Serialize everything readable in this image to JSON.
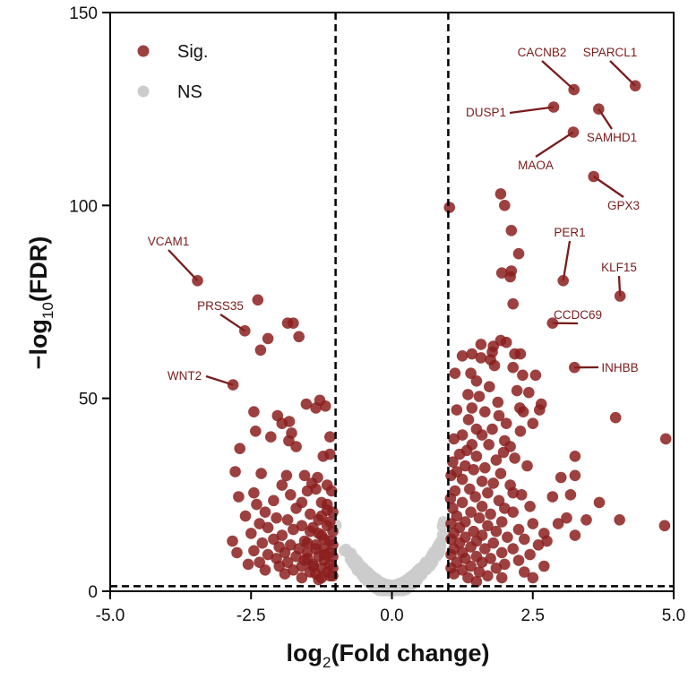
{
  "chart_data": {
    "type": "scatter",
    "title": "",
    "xlabel": {
      "prefix": "log",
      "sub": "2",
      "main": "(Fold change)"
    },
    "ylabel": {
      "prefix": "−log",
      "sub": "10",
      "main": "(FDR)"
    },
    "xlim": [
      -5,
      5
    ],
    "ylim": [
      0,
      150
    ],
    "xticks": [
      "-5.0",
      "-2.5",
      "0.0",
      "2.5",
      "5.0"
    ],
    "yticks": [
      "0",
      "50",
      "100",
      "150"
    ],
    "grid": false,
    "legend_position": "top-left",
    "thresholds": {
      "log2fc": [
        -1,
        1
      ],
      "neg_log10_fdr": 1.3
    },
    "colors": {
      "sig": "#8b1f1f",
      "ns": "#cccccc",
      "label": "#7a1c1c"
    },
    "series": [
      {
        "name": "Sig.",
        "color": "#8b1f1f"
      },
      {
        "name": "NS",
        "color": "#cccccc"
      }
    ],
    "labeled_genes": [
      {
        "gene": "SPARCL1",
        "x": 4.32,
        "y": 131
      },
      {
        "gene": "CACNB2",
        "x": 3.23,
        "y": 130
      },
      {
        "gene": "DUSP1",
        "x": 2.87,
        "y": 125.5
      },
      {
        "gene": "SAMHD1",
        "x": 3.67,
        "y": 125
      },
      {
        "gene": "MAOA",
        "x": 3.22,
        "y": 119
      },
      {
        "gene": "GPX3",
        "x": 3.58,
        "y": 107.5
      },
      {
        "gene": "PER1",
        "x": 3.04,
        "y": 80.5
      },
      {
        "gene": "KLF15",
        "x": 4.05,
        "y": 76.5
      },
      {
        "gene": "CCDC69",
        "x": 2.85,
        "y": 69.5
      },
      {
        "gene": "INHBB",
        "x": 3.24,
        "y": 58
      },
      {
        "gene": "VCAM1",
        "x": -3.45,
        "y": 80.5
      },
      {
        "gene": "PRSS35",
        "x": -2.61,
        "y": 67.5
      },
      {
        "gene": "WNT2",
        "x": -2.82,
        "y": 53.5
      }
    ],
    "sig_points": [
      [
        -2.38,
        75.5
      ],
      [
        -1.85,
        69.5
      ],
      [
        -1.75,
        69.5
      ],
      [
        -2.2,
        65.5
      ],
      [
        -1.65,
        66
      ],
      [
        -2.33,
        62.5
      ],
      [
        -1.28,
        49.5
      ],
      [
        -1.18,
        48
      ],
      [
        -1.52,
        48.5
      ],
      [
        -1.35,
        47.5
      ],
      [
        -2.45,
        46.5
      ],
      [
        -2.03,
        45.5
      ],
      [
        -1.82,
        44
      ],
      [
        -1.95,
        43.5
      ],
      [
        -2.42,
        41.5
      ],
      [
        -1.78,
        41
      ],
      [
        -2.15,
        40
      ],
      [
        -1.83,
        39
      ],
      [
        -1.1,
        40
      ],
      [
        -2.7,
        37
      ],
      [
        -1.7,
        37.5
      ],
      [
        -1.22,
        35
      ],
      [
        -1.1,
        35.5
      ],
      [
        -2.78,
        31
      ],
      [
        -2.32,
        30.5
      ],
      [
        -1.87,
        30
      ],
      [
        -1.55,
        30
      ],
      [
        -1.32,
        29.5
      ],
      [
        -1.42,
        28
      ],
      [
        -1.95,
        27.5
      ],
      [
        -1.15,
        27.5
      ],
      [
        -1.35,
        26.5
      ],
      [
        -1.07,
        26
      ],
      [
        -2.45,
        25.5
      ],
      [
        -1.5,
        26
      ],
      [
        -1.8,
        25
      ],
      [
        -2.72,
        24.5
      ],
      [
        -2.1,
        23.5
      ],
      [
        -1.6,
        23
      ],
      [
        -1.25,
        23
      ],
      [
        -1.15,
        22.5
      ],
      [
        -2.4,
        22.5
      ],
      [
        -1.7,
        21.5
      ],
      [
        -2.25,
        20.5
      ],
      [
        -1.45,
        20
      ],
      [
        -1.05,
        20.5
      ],
      [
        -2.6,
        19.5
      ],
      [
        -2.05,
        19
      ],
      [
        -1.85,
        18.5
      ],
      [
        -1.3,
        18.5
      ],
      [
        -2.35,
        17.5
      ],
      [
        -1.6,
        17
      ],
      [
        -1.15,
        17
      ],
      [
        -2.2,
        16.5
      ],
      [
        -1.75,
        16
      ],
      [
        -1.45,
        15.5
      ],
      [
        -1.05,
        15.5
      ],
      [
        -2.5,
        15
      ],
      [
        -1.95,
        14.5
      ],
      [
        -1.25,
        14.5
      ],
      [
        -2.1,
        13.5
      ],
      [
        -1.55,
        13
      ],
      [
        -1.1,
        13
      ],
      [
        -2.83,
        13
      ],
      [
        -2.3,
        12.5
      ],
      [
        -1.8,
        12
      ],
      [
        -1.35,
        12
      ],
      [
        -1.05,
        12
      ],
      [
        -2.0,
        11.5
      ],
      [
        -1.65,
        11
      ],
      [
        -1.2,
        11
      ],
      [
        -2.45,
        10.5
      ],
      [
        -1.9,
        10
      ],
      [
        -1.5,
        10
      ],
      [
        -1.1,
        10
      ],
      [
        -2.75,
        10
      ],
      [
        -2.2,
        9.5
      ],
      [
        -1.7,
        9
      ],
      [
        -1.3,
        9
      ],
      [
        -1.05,
        9
      ],
      [
        -2.05,
        8.5
      ],
      [
        -1.55,
        8
      ],
      [
        -1.2,
        8
      ],
      [
        -2.35,
        7.5
      ],
      [
        -1.85,
        7.5
      ],
      [
        -1.4,
        7
      ],
      [
        -1.1,
        7
      ],
      [
        -2.55,
        7
      ],
      [
        -2.0,
        6.5
      ],
      [
        -1.6,
        6.5
      ],
      [
        -1.25,
        6
      ],
      [
        -1.05,
        6
      ],
      [
        -2.25,
        5.5
      ],
      [
        -1.75,
        5.5
      ],
      [
        -1.45,
        5
      ],
      [
        -1.15,
        5
      ],
      [
        -1.9,
        4.5
      ],
      [
        -1.35,
        4.5
      ],
      [
        -1.05,
        4
      ],
      [
        -1.6,
        3.5
      ],
      [
        -1.25,
        3.5
      ],
      [
        -1.4,
        6.5
      ],
      [
        -1.3,
        3
      ],
      [
        -1.15,
        21
      ],
      [
        -1.25,
        19.5
      ],
      [
        -1.1,
        18
      ],
      [
        -1.4,
        16.5
      ],
      [
        -1.3,
        15
      ],
      [
        -1.2,
        13.5
      ],
      [
        -1.5,
        12.5
      ],
      [
        -1.35,
        11
      ],
      [
        -1.2,
        9.5
      ],
      [
        -1.5,
        8.5
      ],
      [
        -1.1,
        4
      ],
      [
        1.93,
        103
      ],
      [
        2.0,
        100
      ],
      [
        1.02,
        99.5
      ],
      [
        2.12,
        93.5
      ],
      [
        2.25,
        87.5
      ],
      [
        2.12,
        83
      ],
      [
        2.1,
        81.5
      ],
      [
        1.95,
        82.5
      ],
      [
        2.15,
        74.5
      ],
      [
        1.93,
        65
      ],
      [
        2.03,
        64.5
      ],
      [
        1.8,
        63.5
      ],
      [
        1.58,
        64
      ],
      [
        1.78,
        62
      ],
      [
        2.18,
        61.5
      ],
      [
        1.42,
        61.5
      ],
      [
        1.58,
        60.5
      ],
      [
        2.28,
        61.5
      ],
      [
        1.25,
        61
      ],
      [
        1.75,
        60
      ],
      [
        1.82,
        58.5
      ],
      [
        2.15,
        58
      ],
      [
        1.12,
        56.5
      ],
      [
        1.4,
        56.5
      ],
      [
        2.32,
        56
      ],
      [
        1.5,
        54.5
      ],
      [
        2.55,
        56
      ],
      [
        1.73,
        53
      ],
      [
        2.22,
        52
      ],
      [
        2.43,
        51.5
      ],
      [
        1.35,
        51
      ],
      [
        1.55,
        50.5
      ],
      [
        1.88,
        49
      ],
      [
        2.65,
        48.5
      ],
      [
        1.42,
        47.5
      ],
      [
        2.27,
        47.5
      ],
      [
        1.15,
        47
      ],
      [
        1.65,
        46.5
      ],
      [
        2.33,
        46.5
      ],
      [
        2.62,
        47
      ],
      [
        1.9,
        45.5
      ],
      [
        1.36,
        44.5
      ],
      [
        2.03,
        43.5
      ],
      [
        2.5,
        43.5
      ],
      [
        1.5,
        42
      ],
      [
        1.78,
        42
      ],
      [
        2.28,
        41.5
      ],
      [
        1.25,
        40.5
      ],
      [
        1.6,
        40.5
      ],
      [
        1.1,
        39.5
      ],
      [
        2.0,
        39
      ],
      [
        1.42,
        38
      ],
      [
        1.72,
        38
      ],
      [
        2.1,
        37.5
      ],
      [
        1.33,
        36.5
      ],
      [
        1.98,
        36
      ],
      [
        1.2,
        35.5
      ],
      [
        1.5,
        35
      ],
      [
        2.18,
        34.5
      ],
      [
        1.85,
        34
      ],
      [
        1.08,
        33.5
      ],
      [
        1.3,
        32.5
      ],
      [
        1.65,
        32
      ],
      [
        2.4,
        32.5
      ],
      [
        1.45,
        31.5
      ],
      [
        1.15,
        31
      ],
      [
        1.93,
        30.5
      ],
      [
        1.05,
        30
      ],
      [
        1.25,
        29
      ],
      [
        1.6,
        28.5
      ],
      [
        1.8,
        28
      ],
      [
        2.1,
        27.5
      ],
      [
        1.38,
        26.5
      ],
      [
        1.12,
        26
      ],
      [
        1.7,
        25.5
      ],
      [
        2.3,
        25
      ],
      [
        1.48,
        24.5
      ],
      [
        1.04,
        24
      ],
      [
        1.9,
        23.5
      ],
      [
        1.25,
        23
      ],
      [
        2.85,
        24.5
      ],
      [
        3.17,
        25
      ],
      [
        1.6,
        22
      ],
      [
        1.08,
        21.5
      ],
      [
        2.0,
        21.5
      ],
      [
        1.4,
        20.5
      ],
      [
        1.75,
        20
      ],
      [
        2.15,
        20.5
      ],
      [
        1.15,
        19.5
      ],
      [
        1.55,
        19
      ],
      [
        1.3,
        18
      ],
      [
        1.95,
        18
      ],
      [
        1.05,
        17.5
      ],
      [
        2.5,
        17.5
      ],
      [
        1.7,
        17
      ],
      [
        1.2,
        16.5
      ],
      [
        2.25,
        16
      ],
      [
        1.45,
        15.5
      ],
      [
        1.85,
        15.5
      ],
      [
        1.1,
        15
      ],
      [
        2.7,
        15
      ],
      [
        1.6,
        14.5
      ],
      [
        1.3,
        14
      ],
      [
        2.05,
        14
      ],
      [
        1.05,
        13.5
      ],
      [
        1.5,
        13
      ],
      [
        2.35,
        13.5
      ],
      [
        1.2,
        12.5
      ],
      [
        1.8,
        12.5
      ],
      [
        1.4,
        11.5
      ],
      [
        2.6,
        12
      ],
      [
        1.1,
        11
      ],
      [
        1.65,
        11
      ],
      [
        2.15,
        11
      ],
      [
        1.25,
        10
      ],
      [
        1.95,
        10
      ],
      [
        1.05,
        9.5
      ],
      [
        1.5,
        9
      ],
      [
        2.45,
        9.5
      ],
      [
        1.3,
        8.5
      ],
      [
        1.75,
        8.5
      ],
      [
        2.25,
        8
      ],
      [
        1.15,
        7.5
      ],
      [
        1.6,
        7.5
      ],
      [
        2.0,
        7
      ],
      [
        1.4,
        6.5
      ],
      [
        1.05,
        6
      ],
      [
        1.85,
        6
      ],
      [
        2.7,
        6.5
      ],
      [
        1.25,
        5.5
      ],
      [
        1.55,
        5
      ],
      [
        2.35,
        5
      ],
      [
        1.1,
        4.5
      ],
      [
        1.7,
        4
      ],
      [
        1.35,
        3.5
      ],
      [
        1.95,
        3.5
      ],
      [
        2.5,
        3.5
      ],
      [
        1.5,
        2.5
      ],
      [
        3.25,
        35
      ],
      [
        3.25,
        30
      ],
      [
        3.0,
        29.5
      ],
      [
        3.68,
        23
      ],
      [
        2.95,
        17.5
      ],
      [
        3.1,
        19
      ],
      [
        2.75,
        13
      ],
      [
        2.15,
        25.5
      ],
      [
        2.45,
        22
      ],
      [
        3.25,
        14.5
      ],
      [
        3.45,
        18.5
      ],
      [
        4.04,
        18.5
      ],
      [
        3.97,
        45
      ],
      [
        4.86,
        39.5
      ],
      [
        4.84,
        17
      ]
    ]
  }
}
